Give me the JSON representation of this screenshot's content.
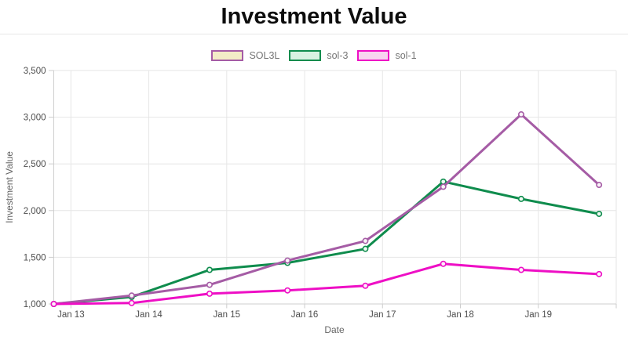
{
  "header": {
    "title": "Investment Value"
  },
  "chart_data": {
    "type": "line",
    "title": "Investment Value",
    "xlabel": "Date",
    "ylabel": "Investment Value",
    "ylim": [
      1000,
      3500
    ],
    "xlim_days": [
      12.78,
      20.0
    ],
    "grid": true,
    "legend_position": "top-center",
    "line_width": 3,
    "marker_radius": 3.2,
    "y_ticks": [
      {
        "value": 1000,
        "label": "1,000"
      },
      {
        "value": 1500,
        "label": "1,500"
      },
      {
        "value": 2000,
        "label": "2,000"
      },
      {
        "value": 2500,
        "label": "2,500"
      },
      {
        "value": 3000,
        "label": "3,000"
      },
      {
        "value": 3500,
        "label": "3,500"
      }
    ],
    "x_ticks": [
      {
        "day": 13,
        "label": "Jan 13"
      },
      {
        "day": 14,
        "label": "Jan 14"
      },
      {
        "day": 15,
        "label": "Jan 15"
      },
      {
        "day": 16,
        "label": "Jan 16"
      },
      {
        "day": 17,
        "label": "Jan 17"
      },
      {
        "day": 18,
        "label": "Jan 18"
      },
      {
        "day": 19,
        "label": "Jan 19"
      },
      {
        "day": 20,
        "label": ""
      }
    ],
    "x_days": [
      12.78,
      13.78,
      14.78,
      15.78,
      16.78,
      17.78,
      18.78,
      19.78
    ],
    "series": [
      {
        "name": "SOL3L",
        "color": "#A55CA5",
        "legend_fill": "#F3ECC7",
        "marker_fill": "#F9F2F8",
        "values": [
          1000,
          1090,
          1205,
          1465,
          1675,
          2255,
          3030,
          2275
        ]
      },
      {
        "name": "sol-3",
        "color": "#0F8C4D",
        "legend_fill": "#D9F2E2",
        "marker_fill": "#EFFAF4",
        "values": [
          1000,
          1075,
          1365,
          1440,
          1590,
          2310,
          2125,
          1965
        ]
      },
      {
        "name": "sol-1",
        "color": "#EE0FC5",
        "legend_fill": "#F8D4F0",
        "marker_fill": "#FDEFFA",
        "values": [
          1000,
          1010,
          1110,
          1145,
          1195,
          1430,
          1365,
          1320
        ]
      }
    ],
    "draw_order": [
      1,
      0,
      2
    ]
  },
  "colors": {
    "grid": "#e6e6e6",
    "axis": "#cfcfcf",
    "tick": "#cccccc",
    "tick_label": "#4d4d4d",
    "axis_title": "#666666",
    "legend_label": "#757575",
    "title": "#0d0d0d"
  }
}
